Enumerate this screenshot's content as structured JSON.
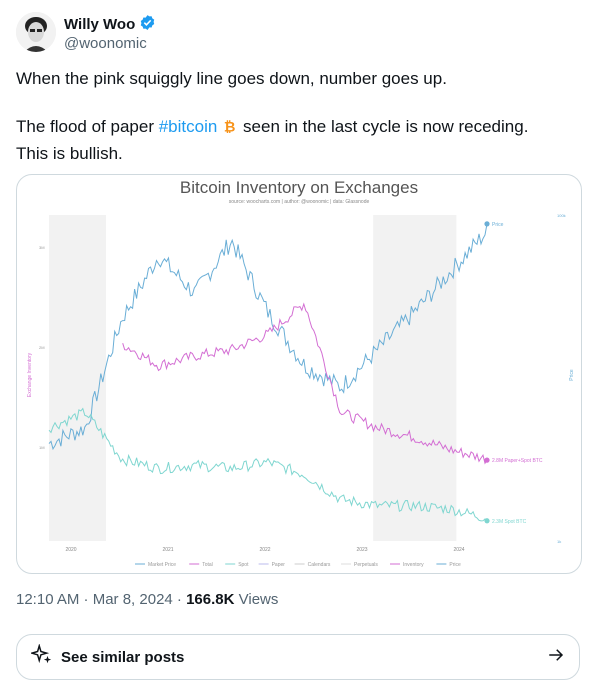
{
  "author": {
    "name": "Willy Woo",
    "handle": "@woonomic"
  },
  "tweet": {
    "line1": "When the pink squiggly line goes down, number goes up.",
    "line2_pre": "The flood of paper ",
    "hashtag": "#bitcoin",
    "line2_post": " seen in the last cycle is now receding.",
    "line3": "This is bullish."
  },
  "chart_data": {
    "type": "line",
    "title": "Bitcoin Inventory on Exchanges",
    "source": "source: woocharts.com | author: @woonomic | data: Glassnode",
    "ylabel": "Exchange Inventory",
    "ylabel_right": "Price",
    "x_ticks": [
      "2020",
      "2021",
      "2022",
      "2023",
      "2024"
    ],
    "left_ticks": [
      "3M",
      "2M",
      "1M"
    ],
    "right_ticks": [
      "100k",
      "1k"
    ],
    "series": [
      {
        "name": "Price",
        "color": "#6aaed6",
        "values": [
          0.3,
          0.35,
          0.7,
          0.9,
          0.78,
          0.95,
          0.72,
          0.55,
          0.48,
          0.6,
          0.72,
          0.85,
          0.98
        ]
      },
      {
        "name": "Paper+Spot BTC",
        "color": "#d36ed3",
        "values": [
          null,
          null,
          0.62,
          0.55,
          0.58,
          0.6,
          0.65,
          0.75,
          0.4,
          0.35,
          0.32,
          0.28,
          0.25
        ]
      },
      {
        "name": "Spot BTC",
        "color": "#7fd6d0",
        "values": [
          0.35,
          0.4,
          0.25,
          0.22,
          0.23,
          0.22,
          0.24,
          0.2,
          0.12,
          0.1,
          0.1,
          0.09,
          0.06
        ]
      }
    ],
    "end_labels": [
      "Price",
      "2.8M Paper+Spot BTC",
      "2.3M Spot BTC"
    ],
    "legend": [
      "Market Price",
      "Total",
      "Spot",
      "Paper",
      "Calendars",
      "Perpetuals",
      "Inventory",
      "Price"
    ],
    "shaded_regions": [
      [
        0.0,
        0.13
      ],
      [
        0.74,
        0.93
      ]
    ]
  },
  "meta": {
    "time": "12:10 AM · Mar 8, 2024 · ",
    "views_count": "166.8K",
    "views_label": " Views"
  },
  "similar": {
    "label": "See similar posts"
  }
}
